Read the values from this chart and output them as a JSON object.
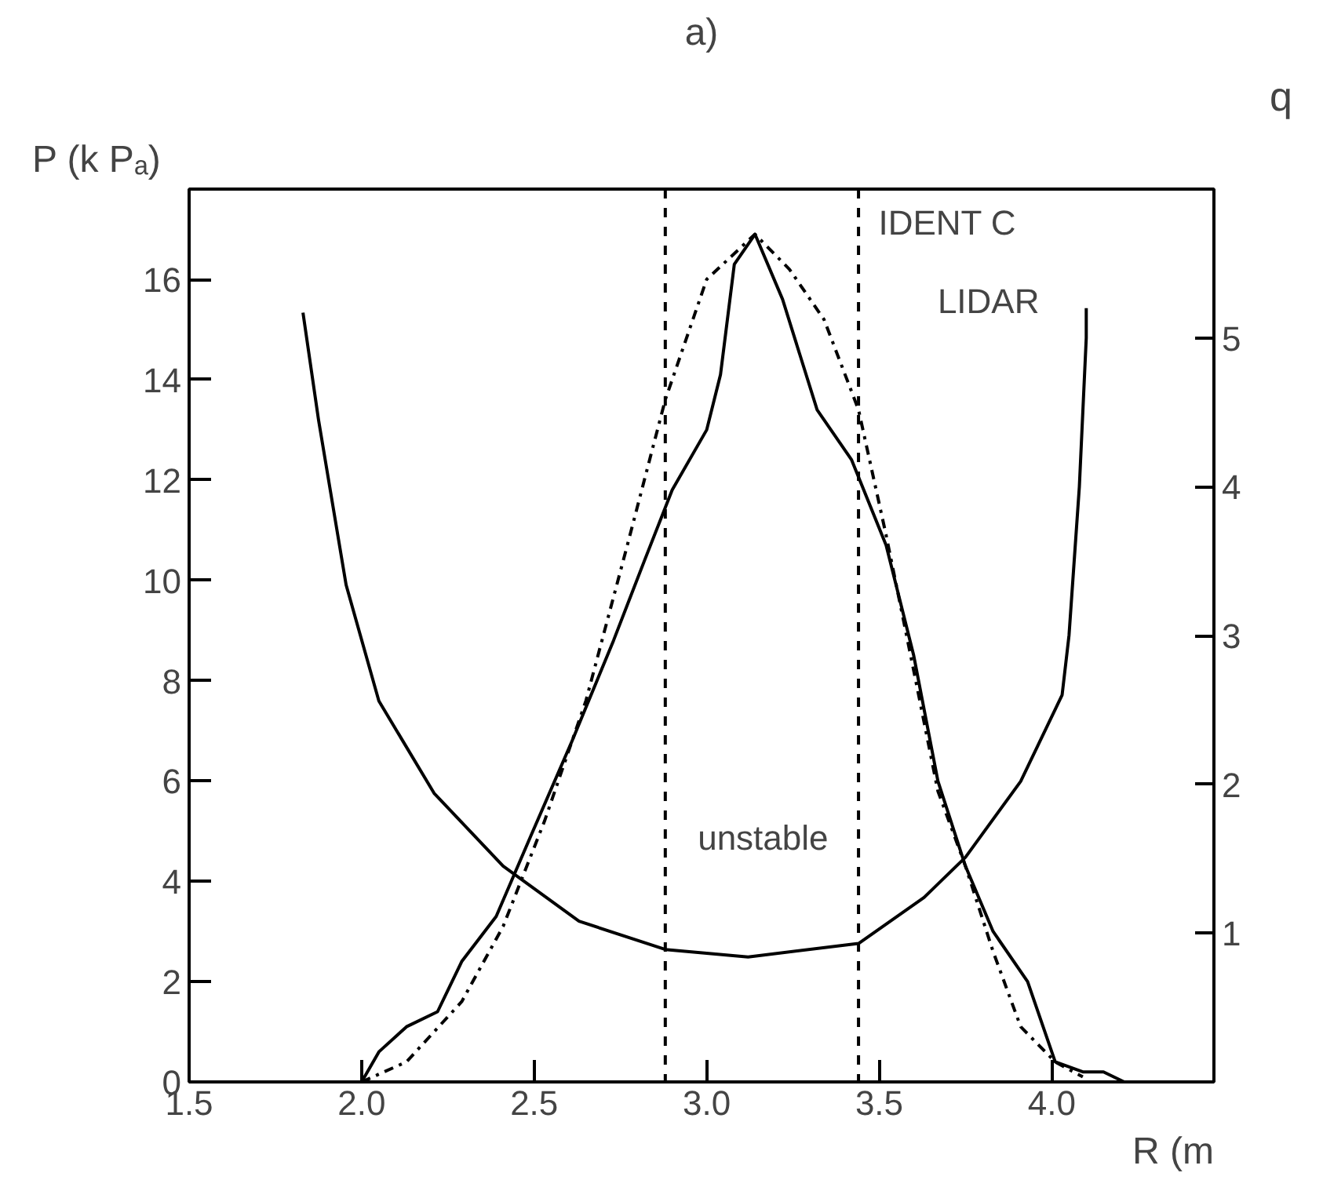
{
  "chart_data": {
    "type": "line",
    "title": "a)",
    "xlabel": "R (m",
    "ylabel": "P (k Pₐ)",
    "y2label": "q",
    "xlim": [
      1.5,
      4.47
    ],
    "xticks": [
      {
        "value": 1.5,
        "label": "1.5"
      },
      {
        "value": 2.0,
        "label": "2.0"
      },
      {
        "value": 2.5,
        "label": "2.5"
      },
      {
        "value": 3.0,
        "label": "3.0"
      },
      {
        "value": 3.5,
        "label": "3.5"
      },
      {
        "value": 4.0,
        "label": "4.0"
      }
    ],
    "ylim": [
      0,
      17.8
    ],
    "yticks": [
      0,
      2,
      4,
      6,
      8,
      10,
      12,
      14,
      16
    ],
    "y2lim": [
      0,
      6.0
    ],
    "y2ticks": [
      1,
      2,
      3,
      4,
      5
    ],
    "grid": false,
    "marker": "none",
    "series": [
      {
        "color": "#000000",
        "line_style": "solid",
        "x": [
          2.0,
          2.05,
          2.13,
          2.22,
          2.29,
          2.39,
          2.49,
          2.61,
          2.73,
          2.82,
          2.9,
          3.0,
          3.04,
          3.08,
          3.14,
          3.22,
          3.32,
          3.42,
          3.52,
          3.6,
          3.67,
          3.75,
          3.83,
          3.93,
          4.01,
          4.09,
          4.15,
          4.21
        ],
        "values": [
          0,
          0.6,
          1.1,
          1.4,
          2.4,
          3.3,
          4.9,
          6.8,
          8.8,
          10.4,
          11.8,
          13.0,
          14.1,
          16.3,
          16.9,
          15.6,
          13.4,
          12.4,
          10.7,
          8.5,
          6.0,
          4.3,
          3.0,
          2.0,
          0.4,
          0.2,
          0.2,
          0
        ]
      },
      {
        "color": "#000000",
        "line_style": "dashdot",
        "x": [
          2.0,
          2.13,
          2.29,
          2.41,
          2.53,
          2.65,
          2.77,
          2.88,
          3.0,
          3.14,
          3.24,
          3.34,
          3.44,
          3.52,
          3.6,
          3.67,
          3.75,
          3.83,
          3.91,
          4.01,
          4.09
        ],
        "values": [
          0,
          0.4,
          1.6,
          3.1,
          5.2,
          7.6,
          10.7,
          13.6,
          16.0,
          16.9,
          16.2,
          15.2,
          13.4,
          10.9,
          8.2,
          5.8,
          4.3,
          2.6,
          1.1,
          0.4,
          0.1
        ]
      },
      {
        "color": "#000000",
        "line_style": "solid",
        "axis": "y2",
        "x": [
          1.83,
          1.875,
          1.955,
          2.05,
          2.21,
          2.41,
          2.63,
          2.88,
          3.12,
          3.44,
          3.63,
          3.75,
          3.91,
          4.03,
          4.05,
          4.08,
          4.1,
          4.1
        ],
        "values": [
          5.17,
          4.45,
          3.34,
          2.56,
          1.94,
          1.45,
          1.08,
          0.89,
          0.84,
          0.93,
          1.24,
          1.51,
          2.02,
          2.6,
          3.0,
          4.0,
          5.0,
          5.2
        ]
      }
    ],
    "ref_lines": [
      {
        "axis": "x",
        "value": 2.88,
        "label": null,
        "line_style": "dashed",
        "color": "#000000"
      },
      {
        "axis": "x",
        "value": 3.44,
        "label": null,
        "line_style": "dashed",
        "color": "#000000"
      }
    ],
    "annotations": [
      "IDENT C",
      "LIDAR",
      "unstable"
    ]
  }
}
